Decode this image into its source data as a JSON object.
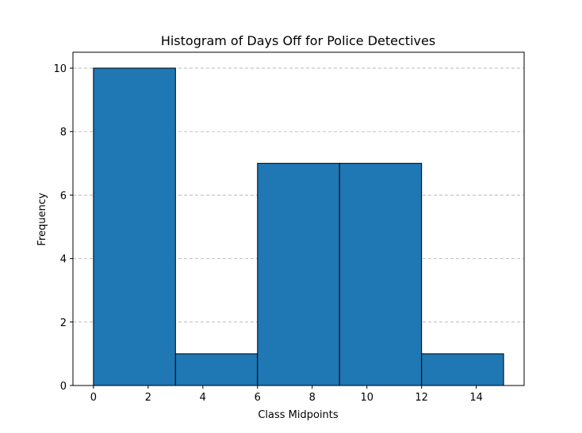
{
  "chart_data": {
    "type": "bar",
    "title": "Histogram of Days Off for Police Detectives",
    "xlabel": "Class Midpoints",
    "ylabel": "Frequency",
    "bins": [
      {
        "start": 0,
        "end": 3,
        "value": 10
      },
      {
        "start": 3,
        "end": 6,
        "value": 1
      },
      {
        "start": 6,
        "end": 9,
        "value": 7
      },
      {
        "start": 9,
        "end": 12,
        "value": 7
      },
      {
        "start": 12,
        "end": 15,
        "value": 1
      }
    ],
    "xlim": [
      -0.75,
      15.75
    ],
    "ylim": [
      0,
      10.5
    ],
    "xticks": [
      0,
      2,
      4,
      6,
      8,
      10,
      12,
      14
    ],
    "yticks": [
      0,
      2,
      4,
      6,
      8,
      10
    ],
    "grid": "y-dashed",
    "bar_color": "#1f77b4",
    "edge_color": "#000000"
  }
}
